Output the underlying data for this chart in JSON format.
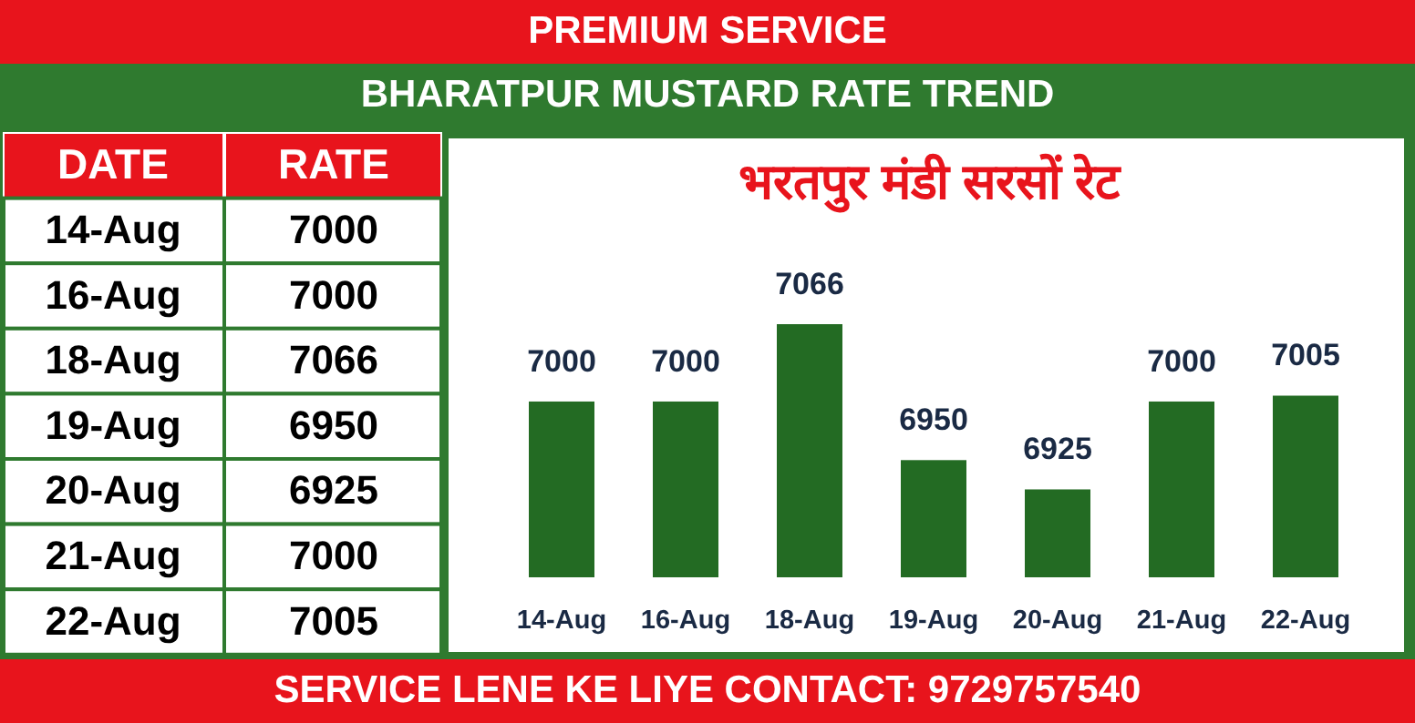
{
  "chart_data": {
    "type": "bar",
    "title": "भरतपुर मंडी सरसों रेट",
    "subtitle": "BHARATPUR MUSTARD RATE TREND",
    "annotations": [
      "PREMIUM SERVICE",
      "SERVICE LENE KE LIYE CONTACT: 9729757540",
      "DATE",
      "RATE",
      "7000",
      "7000",
      "7066",
      "6950",
      "6925",
      "7000",
      "7005"
    ],
    "categories": [
      "14-Aug",
      "16-Aug",
      "18-Aug",
      "19-Aug",
      "20-Aug",
      "21-Aug",
      "22-Aug"
    ],
    "values": [
      7000,
      7000,
      7066,
      6950,
      6925,
      7000,
      7005
    ],
    "color": "#236b23",
    "ylim": [
      6850,
      7066
    ],
    "data_labels": true
  }
}
